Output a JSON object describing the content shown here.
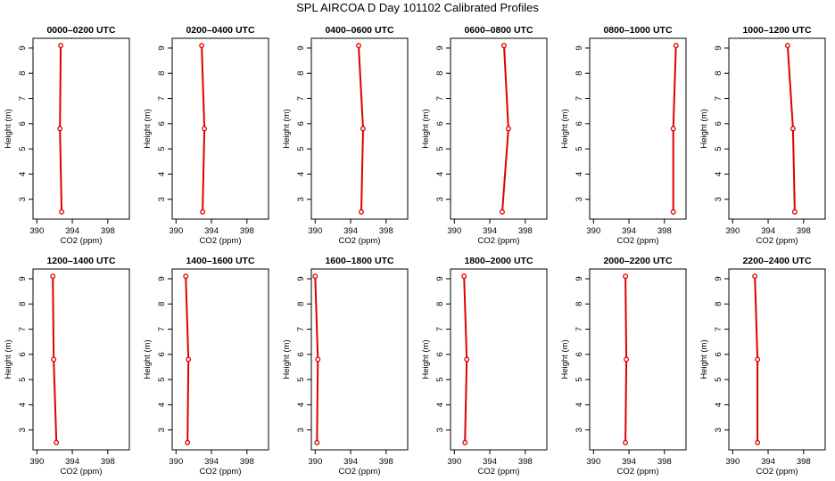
{
  "figure": {
    "title": "SPL AIRCOA D  Day 101102  Calibrated Profiles"
  },
  "colors": {
    "series": "#dd0000",
    "axes": "#000000",
    "background": "#ffffff"
  },
  "chart_data": [
    {
      "type": "line",
      "title": "0000–0200 UTC",
      "xlabel": "CO2 (ppm)",
      "ylabel": "Height (m)",
      "xlim": [
        390,
        400
      ],
      "ylim": [
        2.5,
        9.1
      ],
      "xticks": [
        390,
        394,
        398
      ],
      "yticks": [
        3,
        4,
        5,
        6,
        7,
        8,
        9
      ],
      "grid": false,
      "series": [
        {
          "x": [
            392.8,
            392.6,
            392.7
          ],
          "y": [
            2.5,
            5.8,
            9.1
          ]
        }
      ]
    },
    {
      "type": "line",
      "title": "0200–0400 UTC",
      "xlabel": "CO2 (ppm)",
      "ylabel": "Height (m)",
      "xlim": [
        390,
        400
      ],
      "ylim": [
        2.5,
        9.1
      ],
      "xticks": [
        390,
        394,
        398
      ],
      "yticks": [
        3,
        4,
        5,
        6,
        7,
        8,
        9
      ],
      "grid": false,
      "series": [
        {
          "x": [
            393.0,
            393.2,
            392.9
          ],
          "y": [
            2.5,
            5.8,
            9.1
          ]
        }
      ]
    },
    {
      "type": "line",
      "title": "0400–0600 UTC",
      "xlabel": "CO2 (ppm)",
      "ylabel": "Height (m)",
      "xlim": [
        390,
        400
      ],
      "ylim": [
        2.5,
        9.1
      ],
      "xticks": [
        390,
        394,
        398
      ],
      "yticks": [
        3,
        4,
        5,
        6,
        7,
        8,
        9
      ],
      "grid": false,
      "series": [
        {
          "x": [
            395.2,
            395.4,
            394.9
          ],
          "y": [
            2.5,
            5.8,
            9.1
          ]
        }
      ]
    },
    {
      "type": "line",
      "title": "0600–0800 UTC",
      "xlabel": "CO2 (ppm)",
      "ylabel": "Height (m)",
      "xlim": [
        390,
        400
      ],
      "ylim": [
        2.5,
        9.1
      ],
      "xticks": [
        390,
        394,
        398
      ],
      "yticks": [
        3,
        4,
        5,
        6,
        7,
        8,
        9
      ],
      "grid": false,
      "series": [
        {
          "x": [
            395.4,
            396.1,
            395.6
          ],
          "y": [
            2.5,
            5.8,
            9.1
          ]
        }
      ]
    },
    {
      "type": "line",
      "title": "0800–1000 UTC",
      "xlabel": "CO2 (ppm)",
      "ylabel": "Height (m)",
      "xlim": [
        390,
        400
      ],
      "ylim": [
        2.5,
        9.1
      ],
      "xticks": [
        390,
        394,
        398
      ],
      "yticks": [
        3,
        4,
        5,
        6,
        7,
        8,
        9
      ],
      "grid": false,
      "series": [
        {
          "x": [
            399.0,
            399.0,
            399.3
          ],
          "y": [
            2.5,
            5.8,
            9.1
          ]
        }
      ]
    },
    {
      "type": "line",
      "title": "1000–1200 UTC",
      "xlabel": "CO2 (ppm)",
      "ylabel": "Height (m)",
      "xlim": [
        390,
        400
      ],
      "ylim": [
        2.5,
        9.1
      ],
      "xticks": [
        390,
        394,
        398
      ],
      "yticks": [
        3,
        4,
        5,
        6,
        7,
        8,
        9
      ],
      "grid": false,
      "series": [
        {
          "x": [
            397.0,
            396.8,
            396.2
          ],
          "y": [
            2.5,
            5.8,
            9.1
          ]
        }
      ]
    },
    {
      "type": "line",
      "title": "1200–1400 UTC",
      "xlabel": "CO2 (ppm)",
      "ylabel": "Height (m)",
      "xlim": [
        390,
        400
      ],
      "ylim": [
        2.5,
        9.1
      ],
      "xticks": [
        390,
        394,
        398
      ],
      "yticks": [
        3,
        4,
        5,
        6,
        7,
        8,
        9
      ],
      "grid": false,
      "series": [
        {
          "x": [
            392.2,
            391.9,
            391.8
          ],
          "y": [
            2.5,
            5.8,
            9.1
          ]
        }
      ]
    },
    {
      "type": "line",
      "title": "1400–1600 UTC",
      "xlabel": "CO2 (ppm)",
      "ylabel": "Height (m)",
      "xlim": [
        390,
        400
      ],
      "ylim": [
        2.5,
        9.1
      ],
      "xticks": [
        390,
        394,
        398
      ],
      "yticks": [
        3,
        4,
        5,
        6,
        7,
        8,
        9
      ],
      "grid": false,
      "series": [
        {
          "x": [
            391.3,
            391.4,
            391.1
          ],
          "y": [
            2.5,
            5.8,
            9.1
          ]
        }
      ]
    },
    {
      "type": "line",
      "title": "1600–1800 UTC",
      "xlabel": "CO2 (ppm)",
      "ylabel": "Height (m)",
      "xlim": [
        390,
        400
      ],
      "ylim": [
        2.5,
        9.1
      ],
      "xticks": [
        390,
        394,
        398
      ],
      "yticks": [
        3,
        4,
        5,
        6,
        7,
        8,
        9
      ],
      "grid": false,
      "series": [
        {
          "x": [
            390.2,
            390.3,
            390.0
          ],
          "y": [
            2.5,
            5.8,
            9.1
          ]
        }
      ]
    },
    {
      "type": "line",
      "title": "1800–2000 UTC",
      "xlabel": "CO2 (ppm)",
      "ylabel": "Height (m)",
      "xlim": [
        390,
        400
      ],
      "ylim": [
        2.5,
        9.1
      ],
      "xticks": [
        390,
        394,
        398
      ],
      "yticks": [
        3,
        4,
        5,
        6,
        7,
        8,
        9
      ],
      "grid": false,
      "series": [
        {
          "x": [
            391.2,
            391.4,
            391.1
          ],
          "y": [
            2.5,
            5.8,
            9.1
          ]
        }
      ]
    },
    {
      "type": "line",
      "title": "2000–2200 UTC",
      "xlabel": "CO2 (ppm)",
      "ylabel": "Height (m)",
      "xlim": [
        390,
        400
      ],
      "ylim": [
        2.5,
        9.1
      ],
      "xticks": [
        390,
        394,
        398
      ],
      "yticks": [
        3,
        4,
        5,
        6,
        7,
        8,
        9
      ],
      "grid": false,
      "series": [
        {
          "x": [
            393.6,
            393.7,
            393.6
          ],
          "y": [
            2.5,
            5.8,
            9.1
          ]
        }
      ]
    },
    {
      "type": "line",
      "title": "2200–2400 UTC",
      "xlabel": "CO2 (ppm)",
      "ylabel": "Height (m)",
      "xlim": [
        390,
        400
      ],
      "ylim": [
        2.5,
        9.1
      ],
      "xticks": [
        390,
        394,
        398
      ],
      "yticks": [
        3,
        4,
        5,
        6,
        7,
        8,
        9
      ],
      "grid": false,
      "series": [
        {
          "x": [
            392.8,
            392.8,
            392.5
          ],
          "y": [
            2.5,
            5.8,
            9.1
          ]
        }
      ]
    }
  ]
}
